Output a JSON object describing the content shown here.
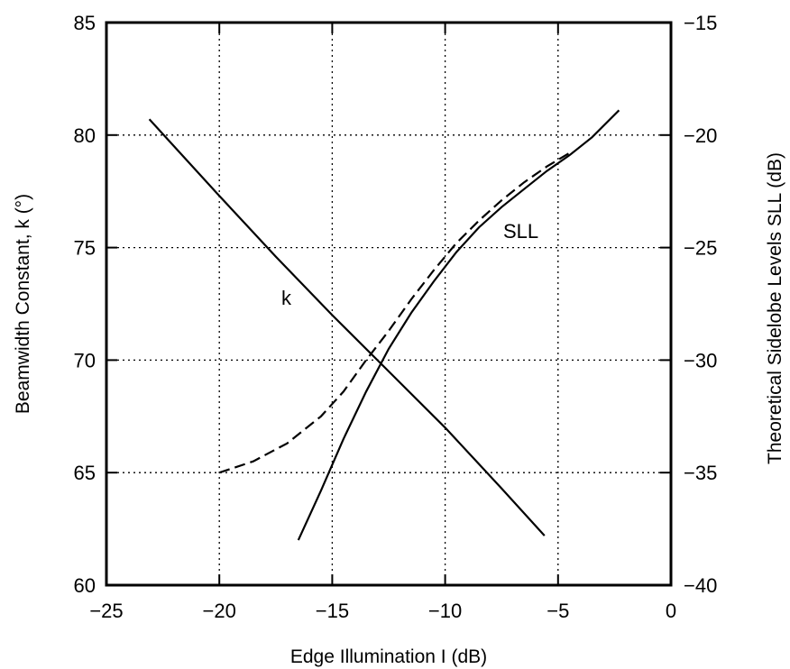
{
  "chart_data": {
    "type": "line",
    "xlabel": "Edge Illumination  I  (dB)",
    "ylabel_left": "Beamwidth Constant,  k (°)",
    "ylabel_right": "Theoretical Sidelobe Levels  SLL  (dB)",
    "xlim": [
      -25,
      0
    ],
    "ylim_left": [
      60,
      85
    ],
    "ylim_right": [
      -40,
      -15
    ],
    "x_ticks": [
      "−25",
      "−20",
      "−15",
      "−10",
      "−5",
      "0"
    ],
    "y_left_ticks": [
      "60",
      "65",
      "70",
      "75",
      "80",
      "85"
    ],
    "y_right_ticks": [
      "−40",
      "−35",
      "−30",
      "−25",
      "−20",
      "−15"
    ],
    "grid": true,
    "series": [
      {
        "name": "k",
        "axis": "left",
        "style": "solid",
        "x": [
          -23.1,
          -20,
          -17.5,
          -15,
          -12.5,
          -10,
          -7.5,
          -5.6
        ],
        "y": [
          80.7,
          77.3,
          74.6,
          72.0,
          69.5,
          67.0,
          64.3,
          62.2
        ]
      },
      {
        "name": "SLL",
        "axis": "right",
        "style": "solid",
        "x": [
          -16.5,
          -15.5,
          -14.5,
          -13.5,
          -12.5,
          -11.5,
          -10.5,
          -9.5,
          -8.5,
          -7.5,
          -6.5,
          -5.5,
          -4.5,
          -3.5,
          -2.3
        ],
        "y": [
          -38.0,
          -35.8,
          -33.5,
          -31.4,
          -29.5,
          -27.9,
          -26.5,
          -25.2,
          -24.1,
          -23.2,
          -22.4,
          -21.6,
          -20.9,
          -20.1,
          -18.9
        ]
      },
      {
        "name": "",
        "axis": "right",
        "style": "dashed",
        "x": [
          -20,
          -18.5,
          -17,
          -15.5,
          -14.5,
          -13.5,
          -12.5,
          -11.5,
          -10.5,
          -9.5,
          -8.5,
          -7.5,
          -6.5,
          -5.5,
          -4.5
        ],
        "y": [
          -35.0,
          -34.5,
          -33.7,
          -32.5,
          -31.4,
          -30.0,
          -28.7,
          -27.3,
          -26.0,
          -24.8,
          -23.8,
          -22.9,
          -22.1,
          -21.4,
          -20.8
        ]
      }
    ],
    "annotations": {
      "k_label": "k",
      "sll_label": "SLL"
    }
  }
}
